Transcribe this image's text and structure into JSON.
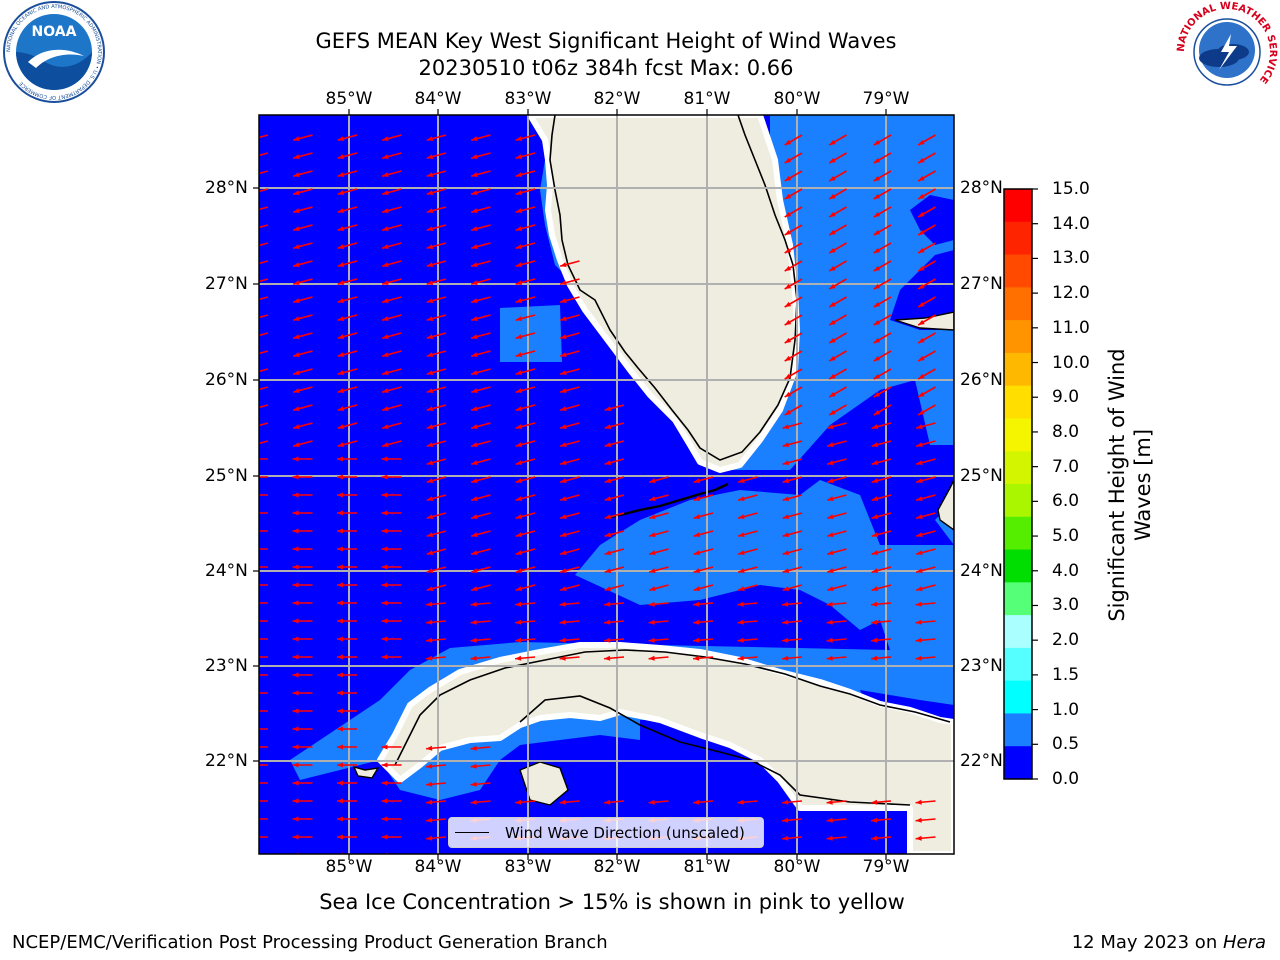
{
  "header": {
    "title_line1": "GEFS MEAN Key West Significant Height of Wind Waves",
    "title_line2": "20230510 t06z 384h fcst   Max: 0.66"
  },
  "map": {
    "lon_labels": [
      "85°W",
      "84°W",
      "83°W",
      "82°W",
      "81°W",
      "80°W",
      "79°W"
    ],
    "lat_labels": [
      "28°N",
      "27°N",
      "26°N",
      "25°N",
      "24°N",
      "23°N",
      "22°N"
    ],
    "legend_label": "Wind Wave Direction (unscaled)",
    "colors": {
      "land": "#efeddf",
      "wave_0_05": "#0000ff",
      "wave_05_10": "#1a80ff",
      "arrow": "#ff0000",
      "grid": "#b0b0b0"
    }
  },
  "colorbar": {
    "label_line1": "Significant Height of Wind",
    "label_line2": "Waves [m]",
    "ticks": [
      "15.0",
      "14.0",
      "13.0",
      "12.0",
      "11.0",
      "10.0",
      "9.0",
      "8.0",
      "7.0",
      "6.0",
      "5.0",
      "4.0",
      "3.0",
      "2.0",
      "1.5",
      "1.0",
      "0.5",
      "0.0"
    ],
    "colors": [
      "#ff0000",
      "#ff2400",
      "#ff4a00",
      "#ff7000",
      "#ff9300",
      "#ffb800",
      "#ffde00",
      "#f5f500",
      "#d4f500",
      "#aaf500",
      "#55ee00",
      "#00dd00",
      "#55ff77",
      "#aaffff",
      "#55ffff",
      "#00ffff",
      "#1a80ff",
      "#0000ff"
    ]
  },
  "notes": {
    "sea_ice": "Sea Ice Concentration > 15% is shown in pink to yellow"
  },
  "footer": {
    "left": "NCEP/EMC/Verification Post Processing Product Generation Branch",
    "right_date": "12 May 2023 on ",
    "right_host": "Hera"
  },
  "logos": {
    "noaa": "NOAA",
    "noaa_ring": "NATIONAL OCEANIC AND ATMOSPHERIC ADMINISTRATION • U.S. DEPARTMENT OF COMMERCE",
    "nws_ring": "NATIONAL WEATHER SERVICE"
  }
}
